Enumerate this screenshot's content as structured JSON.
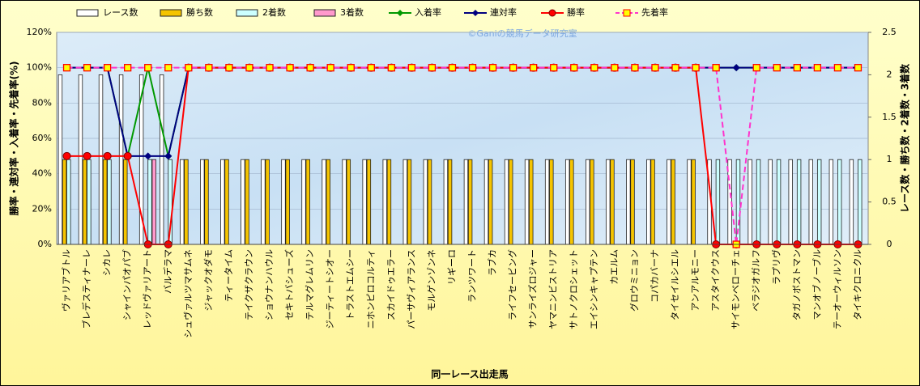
{
  "chart_data": {
    "type": "combo",
    "watermark": "©Ganiの競馬データ研究室",
    "x_label": "同一レース出走馬",
    "y_label": "勝率・連対率・入着率・先着率(%)",
    "y2_label": "レース数・勝ち数・2着数・3着数",
    "categories": [
      "ヴァリアブトル",
      "ブレデスティナーレ",
      "シカレ",
      "シャインパオパブ",
      "レッドヴァリアート",
      "バルデラマ",
      "シュヴァルツマサムネ",
      "ジャックオダモ",
      "ティータイム",
      "テイクザクラウン",
      "ショウナンハウル",
      "セキトバシューズ",
      "テルマグレムリン",
      "ジーティートシオー",
      "トラストエムシー",
      "ニホンピロコルティ",
      "スカイドゥエラー",
      "パーサヴィアランス",
      "モルゲンゾンネ",
      "リギーロ",
      "ランツワート",
      "ラブカ",
      "ライフセービング",
      "サンライズロジャー",
      "ヤマニンビストリア",
      "サトノクロシェット",
      "エイシンキャプテン",
      "カエルム",
      "グロウミニョン",
      "コパカバーナ",
      "タイセイルシエル",
      "アンアルモニー",
      "アスタイクウス",
      "サイモンベローチェ",
      "ベラジオガルフ",
      "ラプリヴ",
      "タガノボストマン",
      "マンオブノーブル",
      "テーオーウィルソン",
      "タイキクロニクル"
    ],
    "series": [
      {
        "name": "レース数",
        "type": "bar",
        "axis": "y2",
        "color": "#ffffff",
        "values": [
          2,
          2,
          2,
          2,
          2,
          2,
          1,
          1,
          1,
          1,
          1,
          1,
          1,
          1,
          1,
          1,
          1,
          1,
          1,
          1,
          1,
          1,
          1,
          1,
          1,
          1,
          1,
          1,
          1,
          1,
          1,
          1,
          1,
          1,
          1,
          1,
          1,
          1,
          1,
          1
        ]
      },
      {
        "name": "勝ち数",
        "type": "bar",
        "axis": "y2",
        "color": "#f5c400",
        "values": [
          1,
          1,
          1,
          1,
          0,
          0,
          1,
          1,
          1,
          1,
          1,
          1,
          1,
          1,
          1,
          1,
          1,
          1,
          1,
          1,
          1,
          1,
          1,
          1,
          1,
          1,
          1,
          1,
          1,
          1,
          1,
          1,
          0,
          0,
          0,
          0,
          0,
          0,
          0,
          0
        ]
      },
      {
        "name": "2着数",
        "type": "bar",
        "axis": "y2",
        "color": "#ccffff",
        "values": [
          1,
          1,
          1,
          0,
          1,
          1,
          0,
          0,
          0,
          0,
          0,
          0,
          0,
          0,
          0,
          0,
          0,
          0,
          0,
          0,
          0,
          0,
          0,
          0,
          0,
          0,
          0,
          0,
          0,
          0,
          0,
          0,
          1,
          1,
          1,
          1,
          1,
          1,
          1,
          1
        ]
      },
      {
        "name": "3着数",
        "type": "bar",
        "axis": "y2",
        "color": "#ff99cc",
        "values": [
          0,
          0,
          0,
          0,
          1,
          0,
          0,
          0,
          0,
          0,
          0,
          0,
          0,
          0,
          0,
          0,
          0,
          0,
          0,
          0,
          0,
          0,
          0,
          0,
          0,
          0,
          0,
          0,
          0,
          0,
          0,
          0,
          0,
          0,
          0,
          0,
          0,
          0,
          0,
          0
        ]
      },
      {
        "name": "入着率",
        "type": "line",
        "marker": "diamond",
        "color": "#009900",
        "values": [
          100,
          100,
          100,
          50,
          100,
          50,
          100,
          100,
          100,
          100,
          100,
          100,
          100,
          100,
          100,
          100,
          100,
          100,
          100,
          100,
          100,
          100,
          100,
          100,
          100,
          100,
          100,
          100,
          100,
          100,
          100,
          100,
          100,
          100,
          100,
          100,
          100,
          100,
          100,
          100
        ]
      },
      {
        "name": "連対率",
        "type": "line",
        "marker": "diamond",
        "color": "#000080",
        "values": [
          100,
          100,
          100,
          50,
          50,
          50,
          100,
          100,
          100,
          100,
          100,
          100,
          100,
          100,
          100,
          100,
          100,
          100,
          100,
          100,
          100,
          100,
          100,
          100,
          100,
          100,
          100,
          100,
          100,
          100,
          100,
          100,
          100,
          100,
          100,
          100,
          100,
          100,
          100,
          100
        ]
      },
      {
        "name": "勝率",
        "type": "line",
        "marker": "circle",
        "color": "#ff0000",
        "values": [
          50,
          50,
          50,
          50,
          0,
          0,
          100,
          100,
          100,
          100,
          100,
          100,
          100,
          100,
          100,
          100,
          100,
          100,
          100,
          100,
          100,
          100,
          100,
          100,
          100,
          100,
          100,
          100,
          100,
          100,
          100,
          100,
          0,
          0,
          0,
          0,
          0,
          0,
          0,
          0
        ]
      },
      {
        "name": "先着率",
        "type": "line",
        "marker": "square",
        "dashed": true,
        "color": "#ff33cc",
        "values": [
          100,
          100,
          100,
          100,
          100,
          100,
          100,
          100,
          100,
          100,
          100,
          100,
          100,
          100,
          100,
          100,
          100,
          100,
          100,
          100,
          100,
          100,
          100,
          100,
          100,
          100,
          100,
          100,
          100,
          100,
          100,
          100,
          100,
          0,
          100,
          100,
          100,
          100,
          100,
          100
        ]
      }
    ],
    "ylim": [
      0,
      120
    ],
    "yticks": [
      {
        "value": 0,
        "label": "0%"
      },
      {
        "value": 20,
        "label": "20%"
      },
      {
        "value": 40,
        "label": "40%"
      },
      {
        "value": 60,
        "label": "60%"
      },
      {
        "value": 80,
        "label": "80%"
      },
      {
        "value": 100,
        "label": "100%"
      },
      {
        "value": 120,
        "label": "120%"
      }
    ],
    "y2lim": [
      0,
      2.5
    ],
    "y2ticks": [
      0,
      0.5,
      1,
      1.5,
      2,
      2.5
    ],
    "grid": true
  }
}
